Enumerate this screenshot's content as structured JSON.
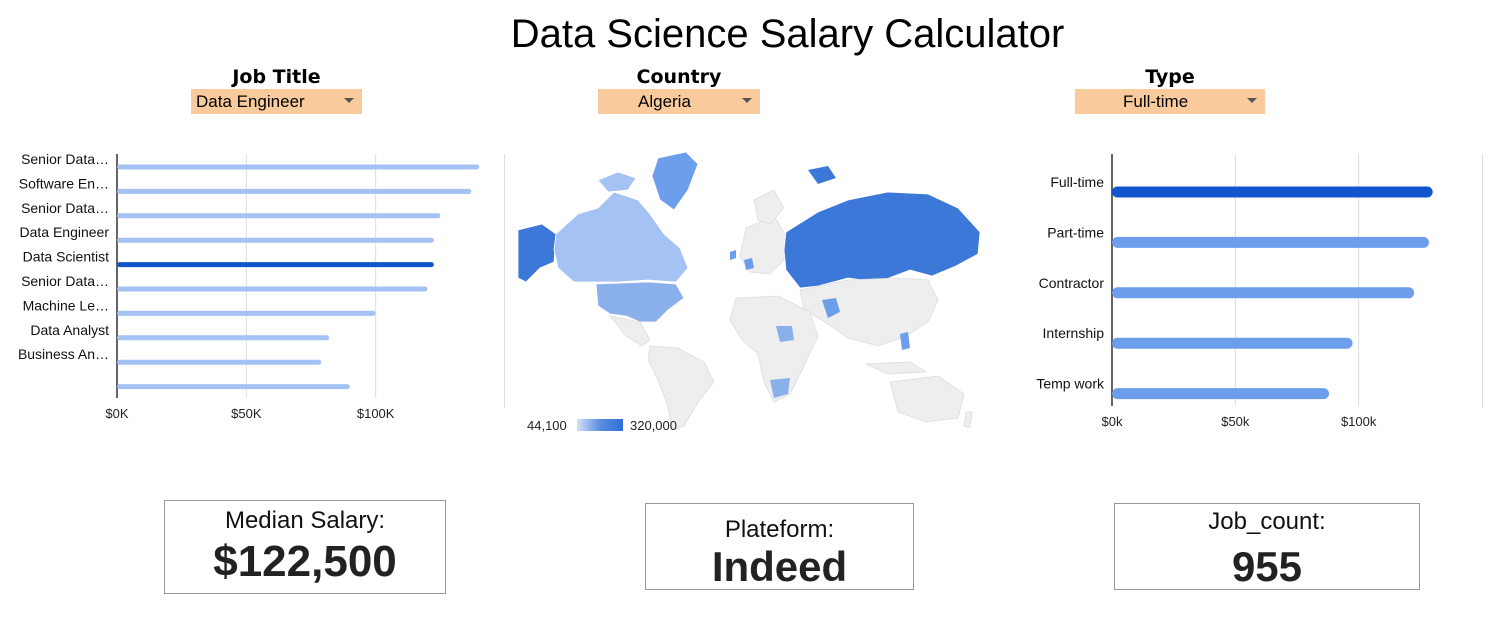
{
  "page_title": "Data Science Salary Calculator",
  "filters": {
    "job_title": {
      "label": "Job Title",
      "value": "Data Engineer"
    },
    "country": {
      "label": "Country",
      "value": "Algeria"
    },
    "type": {
      "label": "Type",
      "value": "Full-time"
    }
  },
  "colors": {
    "filter_bg": "#f9cb9c",
    "bar_light": "#a4c2f4",
    "bar_highlight": "#1155cc",
    "bar_medium": "#6d9eeb",
    "map_dark": "#3c78d8",
    "map_light": "#a4c2f4",
    "map_none": "#eeeeee"
  },
  "chart_data": [
    {
      "type": "bar",
      "orientation": "horizontal",
      "categories": [
        "Senior Data…",
        "Software En…",
        "Senior Data…",
        "Data Engineer",
        "Data Scientist",
        "Senior Data…",
        "Machine Le…",
        "Data Analyst",
        "Business An…",
        ""
      ],
      "values": [
        140000,
        137000,
        125000,
        122500,
        122500,
        120000,
        100000,
        82000,
        79000,
        90000
      ],
      "highlight_index": 4,
      "x_ticks": [
        "$0K",
        "$50K",
        "$100K"
      ],
      "x_tick_values": [
        0,
        50000,
        100000
      ],
      "xlim": [
        0,
        150000
      ],
      "grid": true
    },
    {
      "type": "geo",
      "legend": {
        "min_label": "44,100",
        "max_label": "320,000"
      },
      "highlight_regions": [
        "Alaska",
        "Canada",
        "United States",
        "Russia",
        "Greenland",
        "Pakistan",
        "Nigeria",
        "South Africa",
        "Philippines",
        "Netherlands",
        "Ireland"
      ]
    },
    {
      "type": "bar",
      "orientation": "horizontal",
      "categories": [
        "Full-time",
        "Part-time",
        "Contractor",
        "Internship",
        "Temp work"
      ],
      "values": [
        130000,
        128500,
        122500,
        97500,
        88000
      ],
      "highlight_index": 0,
      "x_ticks": [
        "$0k",
        "$50k",
        "$100k"
      ],
      "x_tick_values": [
        0,
        50000,
        100000
      ],
      "xlim": [
        0,
        150000
      ],
      "grid": true
    }
  ],
  "kpis": {
    "median_salary": {
      "label": "Median Salary:",
      "value": "$122,500"
    },
    "platform": {
      "label": "Plateform:",
      "value": "Indeed"
    },
    "job_count": {
      "label": "Job_count:",
      "value": "955"
    }
  }
}
